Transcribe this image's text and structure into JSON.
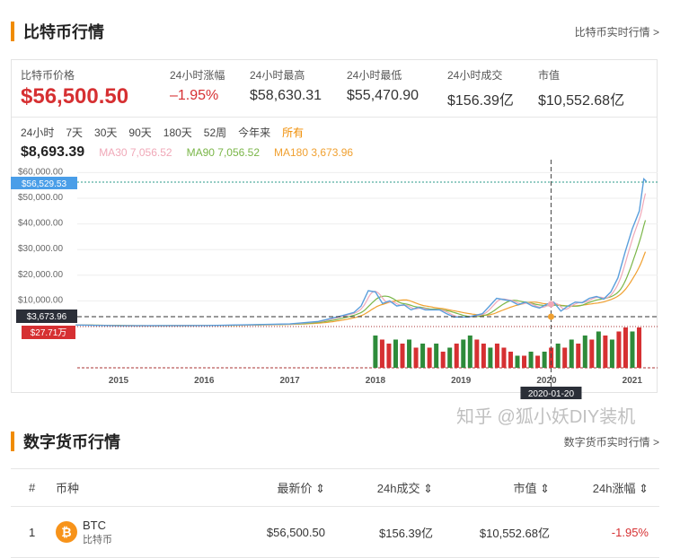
{
  "section1": {
    "title": "比特币行情",
    "more": "比特币实时行情 >"
  },
  "stats": [
    {
      "label": "比特币价格",
      "value": "$56,500.50"
    },
    {
      "label": "24小时涨幅",
      "value": "–1.95%"
    },
    {
      "label": "24小时最高",
      "value": "$58,630.31"
    },
    {
      "label": "24小时最低",
      "value": "$55,470.90"
    },
    {
      "label": "24小时成交",
      "value": "$156.39亿"
    },
    {
      "label": "市值",
      "value": "$10,552.68亿"
    }
  ],
  "ranges": [
    "24小时",
    "7天",
    "30天",
    "90天",
    "180天",
    "52周",
    "今年来",
    "所有"
  ],
  "active_range": "所有",
  "ma": {
    "current": "$8,693.39",
    "ma30": "MA30 7,056.52",
    "ma90": "MA90 7,056.52",
    "ma180": "MA180 3,673.96"
  },
  "colors": {
    "accent": "#f08c00",
    "up": "#d63032",
    "down": "#2e8b3a",
    "price": "#5a9fdc",
    "ma30": "#f0a8b8",
    "ma90": "#7ab648",
    "ma180": "#f0a030"
  },
  "chart_data": {
    "type": "line",
    "yticks": [
      "$60,000.00",
      "$50,000.00",
      "$40,000.00",
      "$30,000.00",
      "$20,000.00",
      "$10,000.00"
    ],
    "yvalues": [
      60000,
      50000,
      40000,
      30000,
      20000,
      10000
    ],
    "ylim": [
      0,
      60000
    ],
    "xticks": [
      "2015",
      "2016",
      "2017",
      "2018",
      "2019",
      "2020",
      "2021"
    ],
    "price_series": [
      [
        "2014-07",
        600
      ],
      [
        "2015-01",
        300
      ],
      [
        "2016-01",
        400
      ],
      [
        "2016-07",
        650
      ],
      [
        "2017-01",
        1000
      ],
      [
        "2017-05",
        2000
      ],
      [
        "2017-08",
        4000
      ],
      [
        "2017-10",
        5500
      ],
      [
        "2017-11",
        8000
      ],
      [
        "2017-12",
        14000
      ],
      [
        "2018-01",
        13500
      ],
      [
        "2018-02",
        9000
      ],
      [
        "2018-03",
        10000
      ],
      [
        "2018-04",
        8000
      ],
      [
        "2018-05",
        8500
      ],
      [
        "2018-06",
        6500
      ],
      [
        "2018-07",
        7500
      ],
      [
        "2018-08",
        6500
      ],
      [
        "2018-10",
        6500
      ],
      [
        "2018-11",
        5000
      ],
      [
        "2018-12",
        3700
      ],
      [
        "2019-02",
        3700
      ],
      [
        "2019-04",
        5000
      ],
      [
        "2019-05",
        8000
      ],
      [
        "2019-06",
        11000
      ],
      [
        "2019-07",
        10500
      ],
      [
        "2019-08",
        10000
      ],
      [
        "2019-09",
        8500
      ],
      [
        "2019-10",
        9500
      ],
      [
        "2019-11",
        8000
      ],
      [
        "2019-12",
        7200
      ],
      [
        "2020-01",
        8693
      ],
      [
        "2020-02",
        9500
      ],
      [
        "2020-03",
        6000
      ],
      [
        "2020-04",
        8000
      ],
      [
        "2020-05",
        9500
      ],
      [
        "2020-06",
        9300
      ],
      [
        "2020-07",
        11000
      ],
      [
        "2020-08",
        11700
      ],
      [
        "2020-09",
        10700
      ],
      [
        "2020-10",
        13500
      ],
      [
        "2020-11",
        19000
      ],
      [
        "2020-12",
        29000
      ],
      [
        "2021-01",
        38000
      ],
      [
        "2021-02",
        45000
      ],
      [
        "2021-02-20",
        57500
      ],
      [
        "2021-03",
        56500
      ]
    ],
    "volumes_from": "2018-01",
    "volumes": [
      [
        8,
        1
      ],
      [
        7,
        0
      ],
      [
        6,
        0
      ],
      [
        7,
        1
      ],
      [
        6,
        0
      ],
      [
        7,
        1
      ],
      [
        5,
        0
      ],
      [
        6,
        1
      ],
      [
        5,
        0
      ],
      [
        6,
        1
      ],
      [
        4,
        0
      ],
      [
        5,
        1
      ],
      [
        6,
        0
      ],
      [
        7,
        1
      ],
      [
        8,
        1
      ],
      [
        7,
        0
      ],
      [
        6,
        0
      ],
      [
        5,
        1
      ],
      [
        6,
        0
      ],
      [
        5,
        0
      ],
      [
        4,
        0
      ],
      [
        3,
        1
      ],
      [
        3,
        0
      ],
      [
        4,
        1
      ],
      [
        3,
        0
      ],
      [
        4,
        1
      ],
      [
        5,
        0
      ],
      [
        6,
        1
      ],
      [
        5,
        0
      ],
      [
        7,
        1
      ],
      [
        6,
        0
      ],
      [
        8,
        1
      ],
      [
        7,
        0
      ],
      [
        9,
        1
      ],
      [
        8,
        0
      ],
      [
        7,
        1
      ],
      [
        9,
        0
      ],
      [
        10,
        0
      ],
      [
        9,
        1
      ],
      [
        10,
        0
      ]
    ],
    "crosshair": {
      "date": "2020-01-20",
      "label": "2020-01-20"
    },
    "price_label": "$56,529.53",
    "ma_label": "$3,673.96",
    "volume_label": "$27.71万"
  },
  "section2": {
    "title": "数字货币行情",
    "more": "数字货币实时行情 >"
  },
  "table": {
    "headers": [
      "#",
      "币种",
      "最新价 ⇕",
      "24h成交 ⇕",
      "市值 ⇕",
      "24h涨幅 ⇕"
    ],
    "rows": [
      {
        "rank": "1",
        "symbol": "BTC",
        "name": "比特币",
        "price": "$56,500.50",
        "volume": "$156.39亿",
        "cap": "$10,552.68亿",
        "change": "-1.95%"
      }
    ]
  },
  "watermark": "知乎 @狐小妖DIY装机"
}
